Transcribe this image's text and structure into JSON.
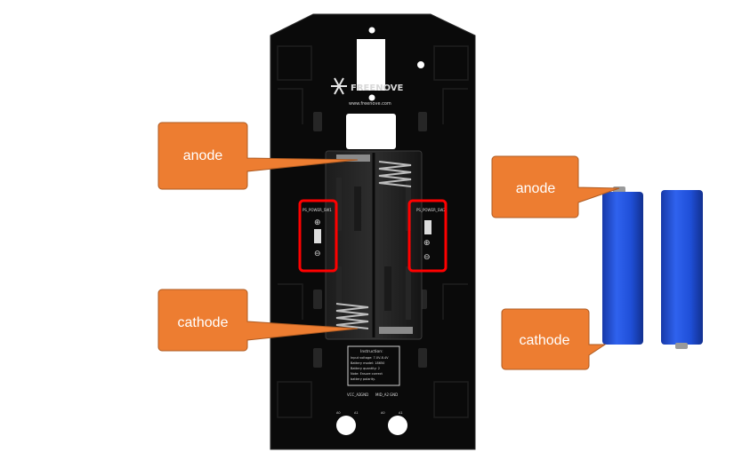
{
  "board": {
    "brand": "FREENOVE",
    "url": "www.freenove.com",
    "left_switch_label": "PS_POWER_SW1",
    "right_switch_label": "PS_POWER_SW2",
    "plus_symbol": "⊕",
    "minus_symbol": "⊖",
    "instruction_lines": [
      "Instruction:",
      "Input voltage: 7.0V-8.4V",
      "Battery model: 18650",
      "Battery quantity: 2",
      "Note: Ensure correct",
      "battery polarity."
    ],
    "connector_labels": [
      "VCC_A2",
      "GND",
      "MID_A2",
      "GND"
    ],
    "bottom_labels": [
      "A0",
      "A1",
      "A0",
      "A1"
    ]
  },
  "callouts": {
    "board_anode": "anode",
    "board_cathode": "cathode",
    "battery_anode": "anode",
    "battery_cathode": "cathode"
  },
  "colors": {
    "callout_fill": "#ed7d31",
    "callout_stroke": "#ae5a21",
    "highlight": "#ff0000",
    "battery_blue": "#1f4fd8",
    "board_black": "#0a0a0a"
  }
}
